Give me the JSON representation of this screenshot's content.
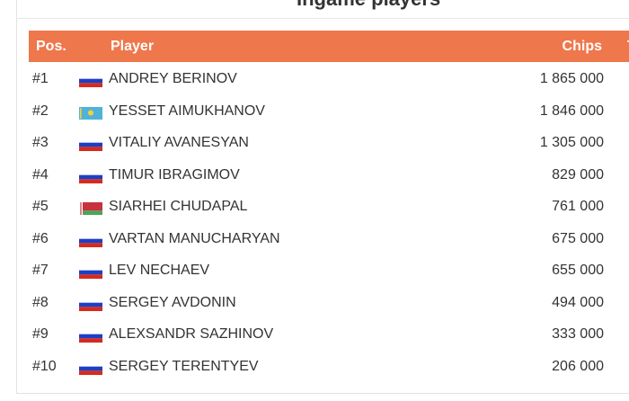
{
  "title": "Ingame players",
  "columns": {
    "pos": "Pos.",
    "player": "Player",
    "chips": "Chips",
    "extra": "T"
  },
  "accent": "#ef774c",
  "rows": [
    {
      "pos": "#1",
      "flag": "russia-flag",
      "name": "ANDREY BERINOV",
      "chips": "1 865 000"
    },
    {
      "pos": "#2",
      "flag": "kazakhstan-flag",
      "name": "YESSET AIMUKHANOV",
      "chips": "1 846 000"
    },
    {
      "pos": "#3",
      "flag": "russia-flag",
      "name": "VITALIY AVANESYAN",
      "chips": "1 305 000"
    },
    {
      "pos": "#4",
      "flag": "russia-flag",
      "name": "TIMUR IBRAGIMOV",
      "chips": "829 000"
    },
    {
      "pos": "#5",
      "flag": "belarus-flag",
      "name": "SIARHEI CHUDAPAL",
      "chips": "761 000"
    },
    {
      "pos": "#6",
      "flag": "russia-flag",
      "name": "VARTAN MANUCHARYAN",
      "chips": "675 000"
    },
    {
      "pos": "#7",
      "flag": "russia-flag",
      "name": "LEV NECHAEV",
      "chips": "655 000"
    },
    {
      "pos": "#8",
      "flag": "russia-flag",
      "name": "SERGEY AVDONIN",
      "chips": "494 000"
    },
    {
      "pos": "#9",
      "flag": "russia-flag",
      "name": "ALEXSANDR SAZHINOV",
      "chips": "333 000"
    },
    {
      "pos": "#10",
      "flag": "russia-flag",
      "name": "SERGEY TERENTYEV",
      "chips": "206 000"
    }
  ]
}
